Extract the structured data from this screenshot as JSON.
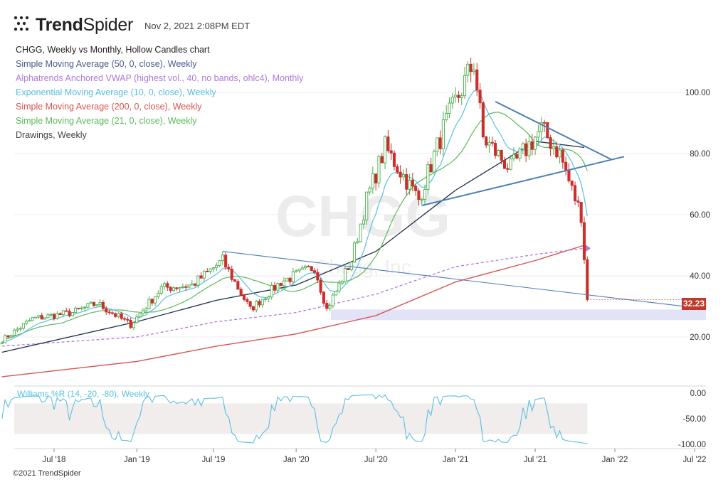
{
  "header": {
    "brand_bold": "Trend",
    "brand_light": "Spider",
    "timestamp": "Nov 2, 2021 2:08PM EDT"
  },
  "legend": {
    "title": "CHGG, Weekly vs Monthly, Hollow Candles chart",
    "items": [
      {
        "label": "Simple Moving Average (50, 0, close), Weekly",
        "color": "#4a5a8a"
      },
      {
        "label": "Alphatrends Anchored VWAP (highest vol., 40, no bands, ohlc4), Monthly",
        "color": "#b07ad9"
      },
      {
        "label": "Exponential Moving Average (10, 0, close), Weekly",
        "color": "#5bc0de"
      },
      {
        "label": "Simple Moving Average (200, 0, close), Weekly",
        "color": "#d9534f"
      },
      {
        "label": "Simple Moving Average (21, 0, close), Weekly",
        "color": "#5cb85c"
      },
      {
        "label": "Drawings, Weekly",
        "color": "#444444"
      }
    ]
  },
  "watermark": {
    "symbol": "CHGG",
    "name": "Chegg, Inc"
  },
  "last_price": "32.23",
  "copyright": "©2021 TrendSpider",
  "colors": {
    "up": "#4cae4c",
    "down": "#c9302c",
    "sma50": "#1f2d4d",
    "sma200": "#d9534f",
    "ema10": "#5bc0de",
    "sma21": "#5cb85c",
    "vwap": "#b07ad9",
    "trend": "#4a7fb5",
    "zone": "#e3e3f7"
  },
  "chart_data": [
    {
      "type": "candlestick",
      "title": "CHGG, Weekly vs Monthly, Hollow Candles chart",
      "x_ticks": [
        "Jul '18",
        "Jan '19",
        "Jul '19",
        "Jan '20",
        "Jul '20",
        "Jan '21",
        "Jul '21",
        "Jan '22",
        "Jul '22"
      ],
      "y_ticks": [
        "20.00",
        "40.00",
        "60.00",
        "80.00",
        "100.00"
      ],
      "ylim": [
        8,
        115
      ],
      "last_price": 32.23,
      "close_anchors": [
        {
          "date": "2018-03-05",
          "close": 19
        },
        {
          "date": "2018-05-14",
          "close": 26
        },
        {
          "date": "2018-08-13",
          "close": 28
        },
        {
          "date": "2018-10-08",
          "close": 31
        },
        {
          "date": "2018-12-24",
          "close": 24
        },
        {
          "date": "2019-03-04",
          "close": 36
        },
        {
          "date": "2019-05-13",
          "close": 37
        },
        {
          "date": "2019-07-22",
          "close": 45
        },
        {
          "date": "2019-09-23",
          "close": 29
        },
        {
          "date": "2019-12-02",
          "close": 38
        },
        {
          "date": "2020-02-17",
          "close": 43
        },
        {
          "date": "2020-03-16",
          "close": 29
        },
        {
          "date": "2020-05-11",
          "close": 45
        },
        {
          "date": "2020-06-15",
          "close": 65
        },
        {
          "date": "2020-07-27",
          "close": 82
        },
        {
          "date": "2020-10-12",
          "close": 65
        },
        {
          "date": "2020-12-07",
          "close": 88
        },
        {
          "date": "2021-02-15",
          "close": 110
        },
        {
          "date": "2021-03-08",
          "close": 85
        },
        {
          "date": "2021-05-10",
          "close": 75
        },
        {
          "date": "2021-07-19",
          "close": 88
        },
        {
          "date": "2021-08-30",
          "close": 80
        },
        {
          "date": "2021-09-27",
          "close": 68
        },
        {
          "date": "2021-10-18",
          "close": 60
        },
        {
          "date": "2021-11-01",
          "close": 32.23
        }
      ],
      "sma50": [
        [
          "2018-03-05",
          15
        ],
        [
          "2019-01-07",
          25
        ],
        [
          "2019-07-08",
          32
        ],
        [
          "2020-01-06",
          37
        ],
        [
          "2020-07-06",
          48
        ],
        [
          "2021-01-04",
          68
        ],
        [
          "2021-07-05",
          84
        ],
        [
          "2021-10-25",
          82
        ]
      ],
      "sma200": [
        [
          "2018-03-05",
          7
        ],
        [
          "2019-01-07",
          12
        ],
        [
          "2019-07-08",
          17
        ],
        [
          "2020-01-06",
          21
        ],
        [
          "2020-07-06",
          27
        ],
        [
          "2021-01-04",
          38
        ],
        [
          "2021-07-05",
          45
        ],
        [
          "2021-10-25",
          50
        ]
      ],
      "vwap": [
        [
          "2018-03-05",
          17
        ],
        [
          "2019-01-07",
          20
        ],
        [
          "2019-07-08",
          25
        ],
        [
          "2020-01-06",
          28
        ],
        [
          "2020-07-06",
          34
        ],
        [
          "2021-01-04",
          43
        ],
        [
          "2021-07-05",
          47
        ],
        [
          "2021-10-25",
          49
        ]
      ],
      "drawings": {
        "zone": [
          25.5,
          29
        ],
        "lines": [
          {
            "from": [
              "2019-07-22",
              48
            ],
            "to": [
              "2022-07-11",
              29.5
            ]
          },
          {
            "from": [
              "2020-10-19",
              63
            ],
            "to": [
              "2022-01-24",
              79
            ]
          },
          {
            "from": [
              "2021-04-05",
              97
            ],
            "to": [
              "2021-12-27",
              78
            ]
          }
        ]
      }
    },
    {
      "type": "line",
      "title": "Williams %R (14, -20, -80), Weekly",
      "y_ticks": [
        "0.00",
        "-50.00",
        "-100.00"
      ],
      "ylim": [
        -100,
        0
      ],
      "bands": [
        -20,
        -80
      ],
      "series_color": "#5bc0de"
    }
  ]
}
